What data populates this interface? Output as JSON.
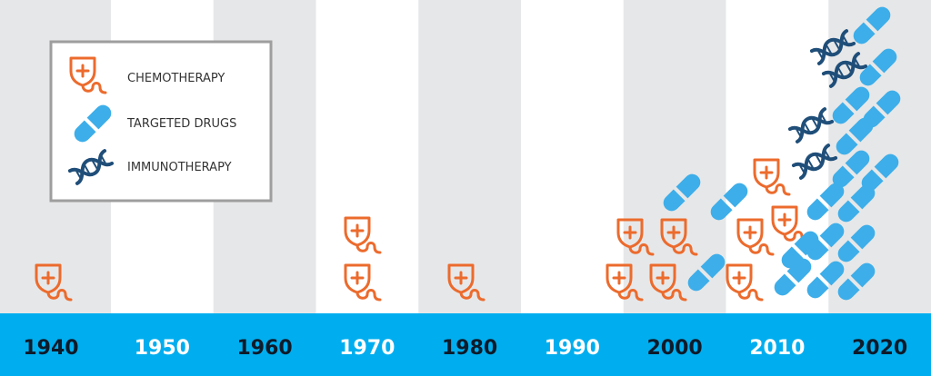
{
  "colors": {
    "chemotherapy": "#ec6b2d",
    "targeted": "#3daee9",
    "immunotherapy": "#1f4e79",
    "band_gray": "#e6e7e8",
    "band_white": "#ffffff",
    "axis_bar": "#00aeef",
    "year_dark": "#0d1b2a",
    "year_light": "#ffffff"
  },
  "legend": {
    "items": [
      {
        "key": "chemotherapy",
        "label": "CHEMOTHERAPY",
        "icon": "iv-bag-icon"
      },
      {
        "key": "targeted",
        "label": "TARGETED DRUGS",
        "icon": "capsule-icon"
      },
      {
        "key": "immunotherapy",
        "label": "IMMUNOTHERAPY",
        "icon": "dna-icon"
      }
    ]
  },
  "chart_data": {
    "type": "pictograph",
    "decades": [
      "1940",
      "1950",
      "1960",
      "1970",
      "1980",
      "1990",
      "2000",
      "2010",
      "2020"
    ],
    "series": [
      {
        "key": "chemotherapy",
        "name": "CHEMOTHERAPY",
        "values": [
          1,
          0,
          0,
          2,
          1,
          0,
          4,
          4,
          0
        ]
      },
      {
        "key": "targeted",
        "name": "TARGETED DRUGS",
        "values": [
          0,
          0,
          0,
          0,
          0,
          0,
          2,
          2,
          14
        ]
      },
      {
        "key": "immunotherapy",
        "name": "IMMUNOTHERAPY",
        "values": [
          0,
          0,
          0,
          0,
          0,
          0,
          0,
          0,
          4
        ]
      }
    ],
    "year_label_colors": [
      "dark",
      "light",
      "dark",
      "light",
      "dark",
      "light",
      "dark",
      "light",
      "dark"
    ]
  }
}
